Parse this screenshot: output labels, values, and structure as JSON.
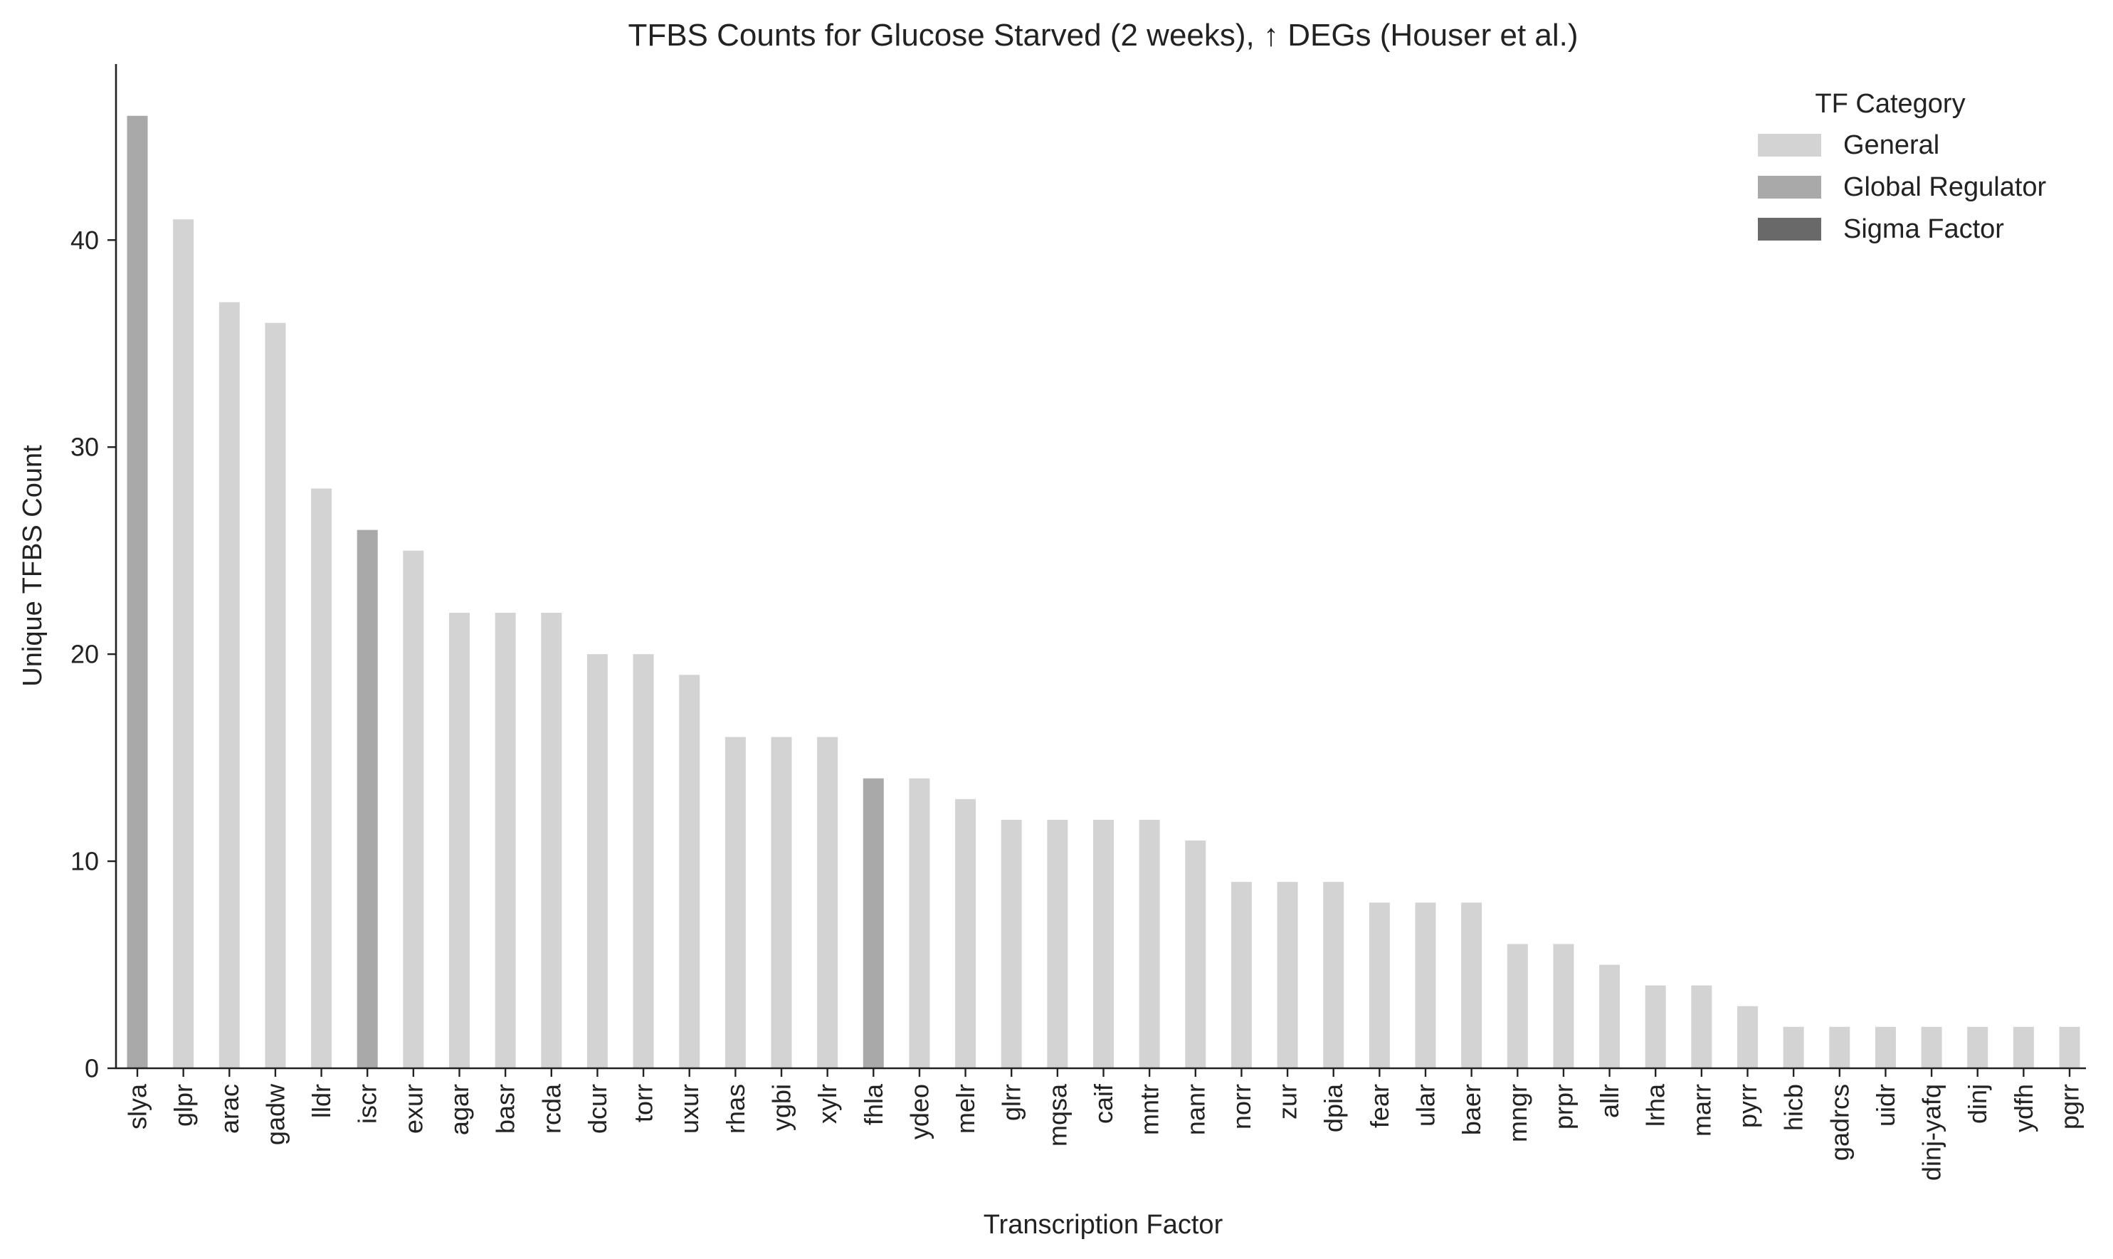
{
  "chart_data": {
    "type": "bar",
    "title": "TFBS Counts for Glucose Starved (2 weeks), ↑ DEGs (Houser et al.)",
    "xlabel": "Transcription Factor",
    "ylabel": "Unique TFBS Count",
    "ylim": [
      0,
      48.5
    ],
    "yticks": [
      0,
      10,
      20,
      30,
      40
    ],
    "grid": false,
    "legend": {
      "title": "TF Category",
      "position": "top-right",
      "entries": [
        {
          "name": "General",
          "color": "#d3d3d3"
        },
        {
          "name": "Global Regulator",
          "color": "#a9a9a9"
        },
        {
          "name": "Sigma Factor",
          "color": "#696969"
        }
      ]
    },
    "categories": [
      "slya",
      "glpr",
      "arac",
      "gadw",
      "lldr",
      "iscr",
      "exur",
      "agar",
      "basr",
      "rcda",
      "dcur",
      "torr",
      "uxur",
      "rhas",
      "ygbi",
      "xylr",
      "fhla",
      "ydeo",
      "melr",
      "glrr",
      "mqsa",
      "caif",
      "mntr",
      "nanr",
      "norr",
      "zur",
      "dpia",
      "fear",
      "ular",
      "baer",
      "mngr",
      "prpr",
      "allr",
      "lrha",
      "marr",
      "pyrr",
      "hicb",
      "gadrcs",
      "uidr",
      "dinj-yafq",
      "dinj",
      "ydfh",
      "pgrr"
    ],
    "values": [
      46,
      41,
      37,
      36,
      28,
      26,
      25,
      22,
      22,
      22,
      20,
      20,
      19,
      16,
      16,
      16,
      14,
      14,
      13,
      12,
      12,
      12,
      12,
      11,
      9,
      9,
      9,
      8,
      8,
      8,
      6,
      6,
      5,
      4,
      4,
      3,
      2,
      2,
      2,
      2,
      2,
      2,
      2
    ],
    "bar_categories": [
      "Global Regulator",
      "General",
      "General",
      "General",
      "General",
      "Global Regulator",
      "General",
      "General",
      "General",
      "General",
      "General",
      "General",
      "General",
      "General",
      "General",
      "General",
      "Global Regulator",
      "General",
      "General",
      "General",
      "General",
      "General",
      "General",
      "General",
      "General",
      "General",
      "General",
      "General",
      "General",
      "General",
      "General",
      "General",
      "General",
      "General",
      "General",
      "General",
      "General",
      "General",
      "General",
      "General",
      "General",
      "General",
      "General"
    ]
  }
}
